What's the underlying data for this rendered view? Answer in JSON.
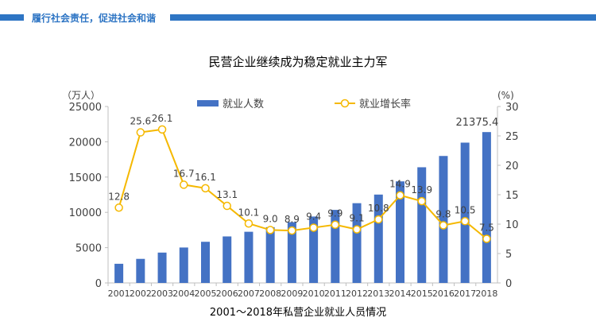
{
  "header": {
    "banner_text": "履行社会责任，促进社会和谐"
  },
  "colors": {
    "banner": "#2e75c4",
    "bar": "#4472c4",
    "line": "#f5b800"
  },
  "chart_data": {
    "type": "bar+line",
    "title": "民营企业继续成为稳定就业主力军",
    "caption": "2001～2018年私营企业就业人员情况",
    "y_left_unit": "（万人）",
    "y_right_unit": "(%)",
    "ylim_left": [
      0,
      25000
    ],
    "yticks_left": [
      "0",
      "5000",
      "10000",
      "15000",
      "20000",
      "25000"
    ],
    "ylim_right": [
      0,
      30
    ],
    "yticks_right": [
      "0",
      "5",
      "10",
      "15",
      "20",
      "25",
      "30"
    ],
    "categories": [
      "2001",
      "2002",
      "2003",
      "2004",
      "2005",
      "2006",
      "2007",
      "2008",
      "2009",
      "2010",
      "2011",
      "2012",
      "2013",
      "2014",
      "2015",
      "2016",
      "2017",
      "2018"
    ],
    "series": [
      {
        "name": "就业人数",
        "type": "bar",
        "axis": "left",
        "values": [
          2714,
          3410,
          4300,
          5020,
          5830,
          6590,
          7250,
          7900,
          8610,
          9410,
          10350,
          11300,
          12520,
          14390,
          16390,
          17990,
          19880,
          21375.4
        ],
        "labels": [
          "",
          "",
          "",
          "",
          "",
          "",
          "",
          "",
          "",
          "",
          "",
          "",
          "",
          "",
          "",
          "",
          "",
          "21375.4"
        ]
      },
      {
        "name": "就业增长率",
        "type": "line",
        "axis": "right",
        "values": [
          12.8,
          25.6,
          26.1,
          16.7,
          16.1,
          13.1,
          10.1,
          9.0,
          8.9,
          9.4,
          9.9,
          9.1,
          10.8,
          14.9,
          13.9,
          9.8,
          10.5,
          7.5
        ],
        "labels": [
          "12.8",
          "25.6",
          "26.1",
          "16.7",
          "16.1",
          "13.1",
          "10.1",
          "9.0",
          "8.9",
          "9.4",
          "9.9",
          "9.1",
          "10.8",
          "14.9",
          "13.9",
          "9.8",
          "10.5",
          "7.5"
        ]
      }
    ],
    "legend_position": "top",
    "grid": false
  }
}
